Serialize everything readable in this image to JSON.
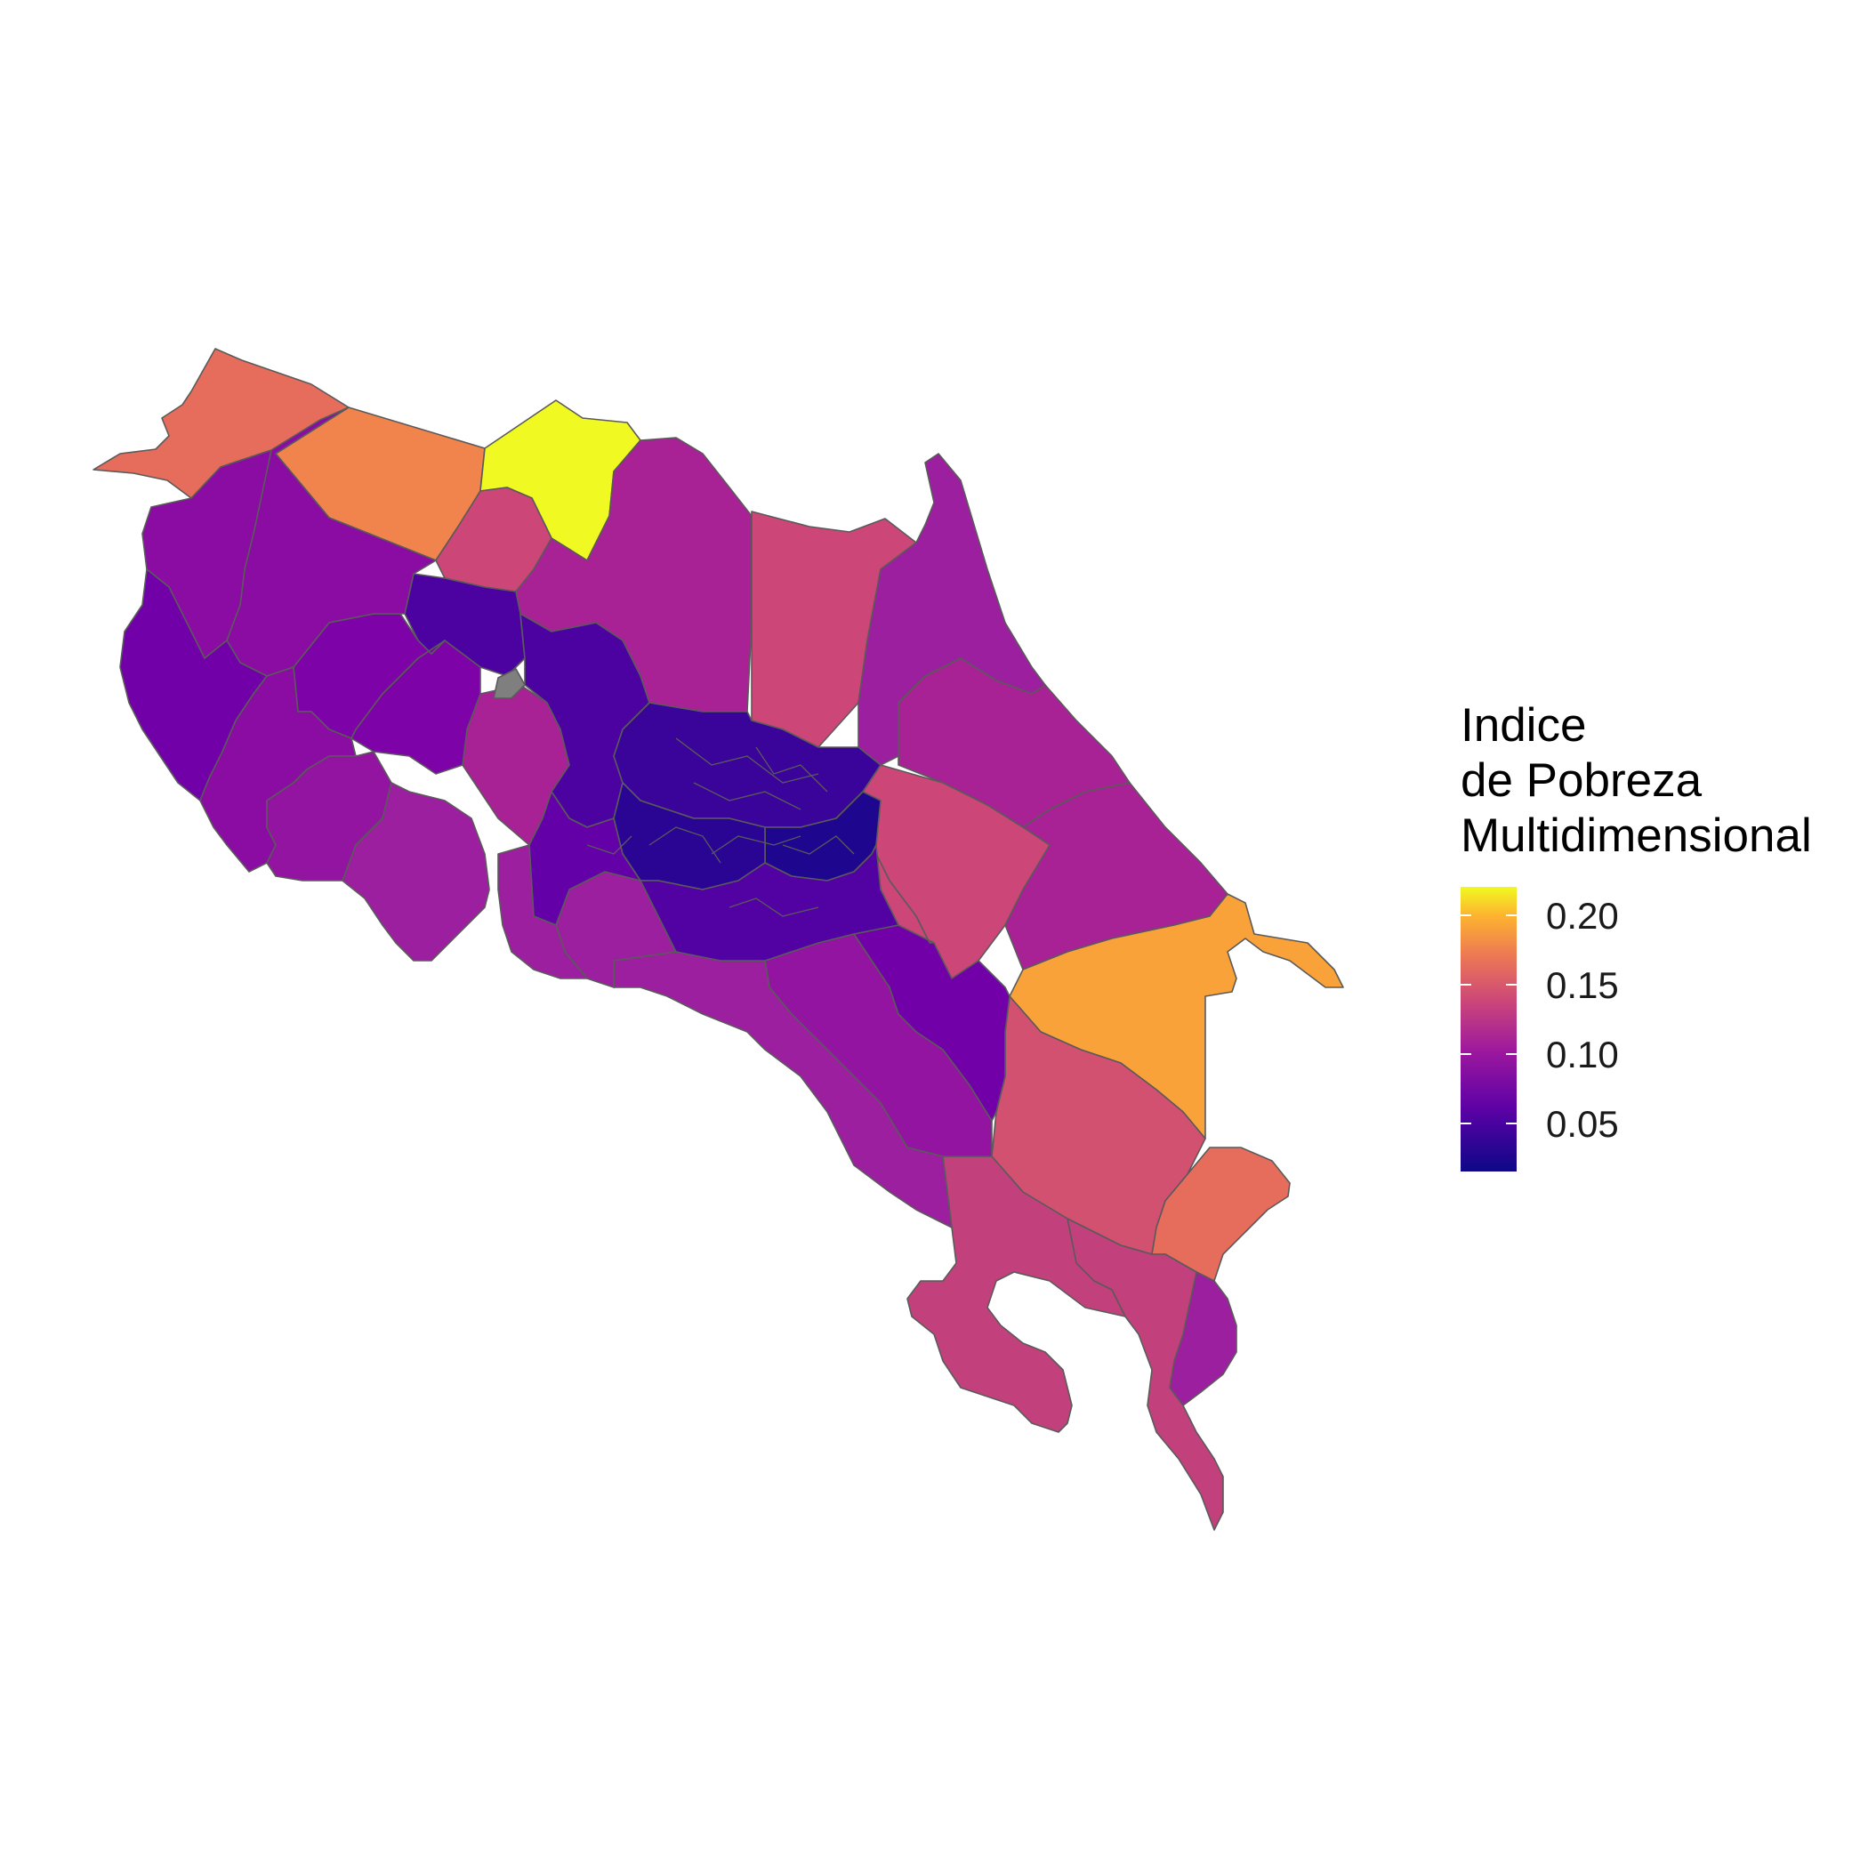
{
  "legend": {
    "title_lines": [
      "Indice",
      "de Pobreza",
      "Multidimensional"
    ],
    "scale": "plasma",
    "range": [
      0.015,
      0.22
    ],
    "ticks": [
      {
        "value": 0.2,
        "label": "0.20"
      },
      {
        "value": 0.15,
        "label": "0.15"
      },
      {
        "value": 0.1,
        "label": "0.10"
      },
      {
        "value": 0.05,
        "label": "0.05"
      }
    ]
  },
  "colors": {
    "yellow": "#f0f921",
    "orange": "#f89540",
    "salmon": "#e66c5c",
    "pink": "#cc4778",
    "magenta": "#a82296",
    "purple": "#8a0ca2",
    "violet": "#6e00a8",
    "indigo": "#4c02a1",
    "deep": "#2a0593",
    "missing": "#7f7f7f",
    "border": "#5a5a5a"
  }
}
